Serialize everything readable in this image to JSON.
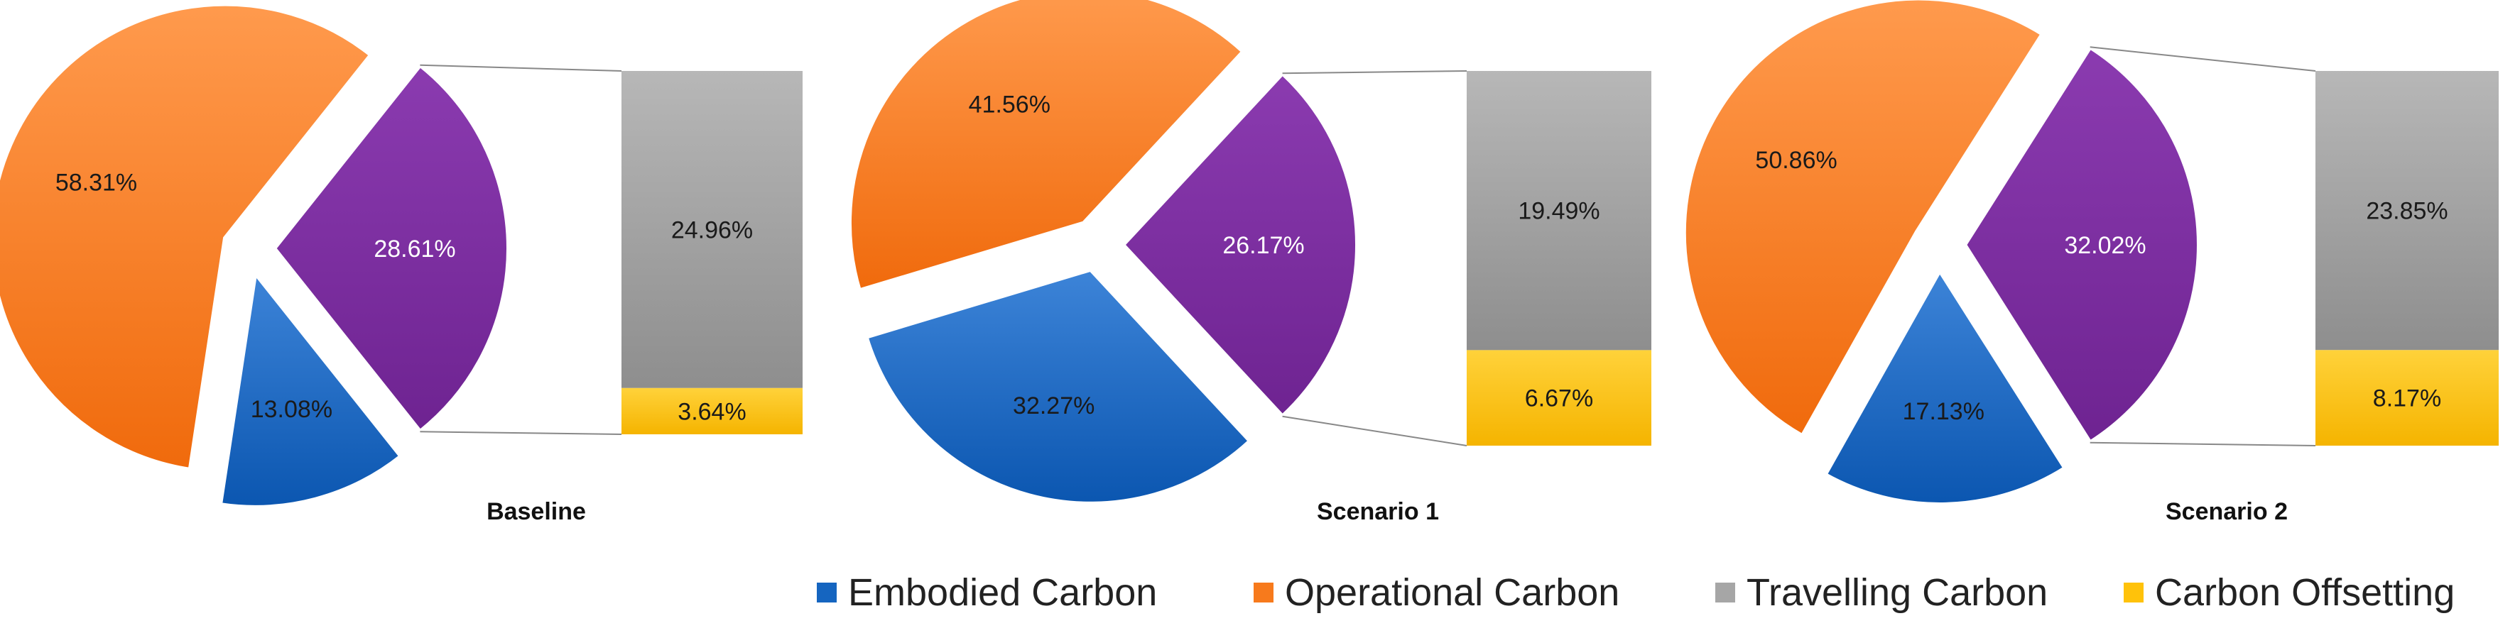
{
  "colors": {
    "embodied": "#1565c0",
    "operational": "#f77a1c",
    "travelling": "#a6a6a6",
    "offsetting": "#ffc20a",
    "purple": "#7b2d9e"
  },
  "legend": [
    {
      "name": "Embodied Carbon",
      "color": "#1565c0"
    },
    {
      "name": "Operational Carbon",
      "color": "#f77a1c"
    },
    {
      "name": "Travelling Carbon",
      "color": "#a6a6a6"
    },
    {
      "name": "Carbon Offsetting",
      "color": "#ffc20a"
    }
  ],
  "chart_data": [
    {
      "type": "bar-of-pie",
      "title": "Baseline",
      "pie": [
        {
          "name": "Operational Carbon",
          "value": 58.31,
          "label": "58.31%"
        },
        {
          "name": "Travelling Carbon + Carbon Offsetting",
          "value": 28.61,
          "label": "28.61%"
        },
        {
          "name": "Embodied Carbon",
          "value": 13.08,
          "label": "13.08%"
        }
      ],
      "bar": [
        {
          "name": "Travelling Carbon",
          "value": 24.96,
          "label": "24.96%"
        },
        {
          "name": "Carbon Offsetting",
          "value": 3.64,
          "label": "3.64%"
        }
      ]
    },
    {
      "type": "bar-of-pie",
      "title": "Scenario 1",
      "pie": [
        {
          "name": "Operational Carbon",
          "value": 41.56,
          "label": "41.56%"
        },
        {
          "name": "Travelling Carbon + Carbon Offsetting",
          "value": 26.17,
          "label": "26.17%"
        },
        {
          "name": "Embodied Carbon",
          "value": 32.27,
          "label": "32.27%"
        }
      ],
      "bar": [
        {
          "name": "Travelling Carbon",
          "value": 19.49,
          "label": "19.49%"
        },
        {
          "name": "Carbon Offsetting",
          "value": 6.67,
          "label": "6.67%"
        }
      ]
    },
    {
      "type": "bar-of-pie",
      "title": "Scenario 2",
      "pie": [
        {
          "name": "Operational Carbon",
          "value": 50.86,
          "label": "50.86%"
        },
        {
          "name": "Travelling Carbon + Carbon Offsetting",
          "value": 32.02,
          "label": "32.02%"
        },
        {
          "name": "Embodied Carbon",
          "value": 17.13,
          "label": "17.13%"
        }
      ],
      "bar": [
        {
          "name": "Travelling Carbon",
          "value": 23.85,
          "label": "23.85%"
        },
        {
          "name": "Carbon Offsetting",
          "value": 8.17,
          "label": "8.17%"
        }
      ]
    }
  ]
}
